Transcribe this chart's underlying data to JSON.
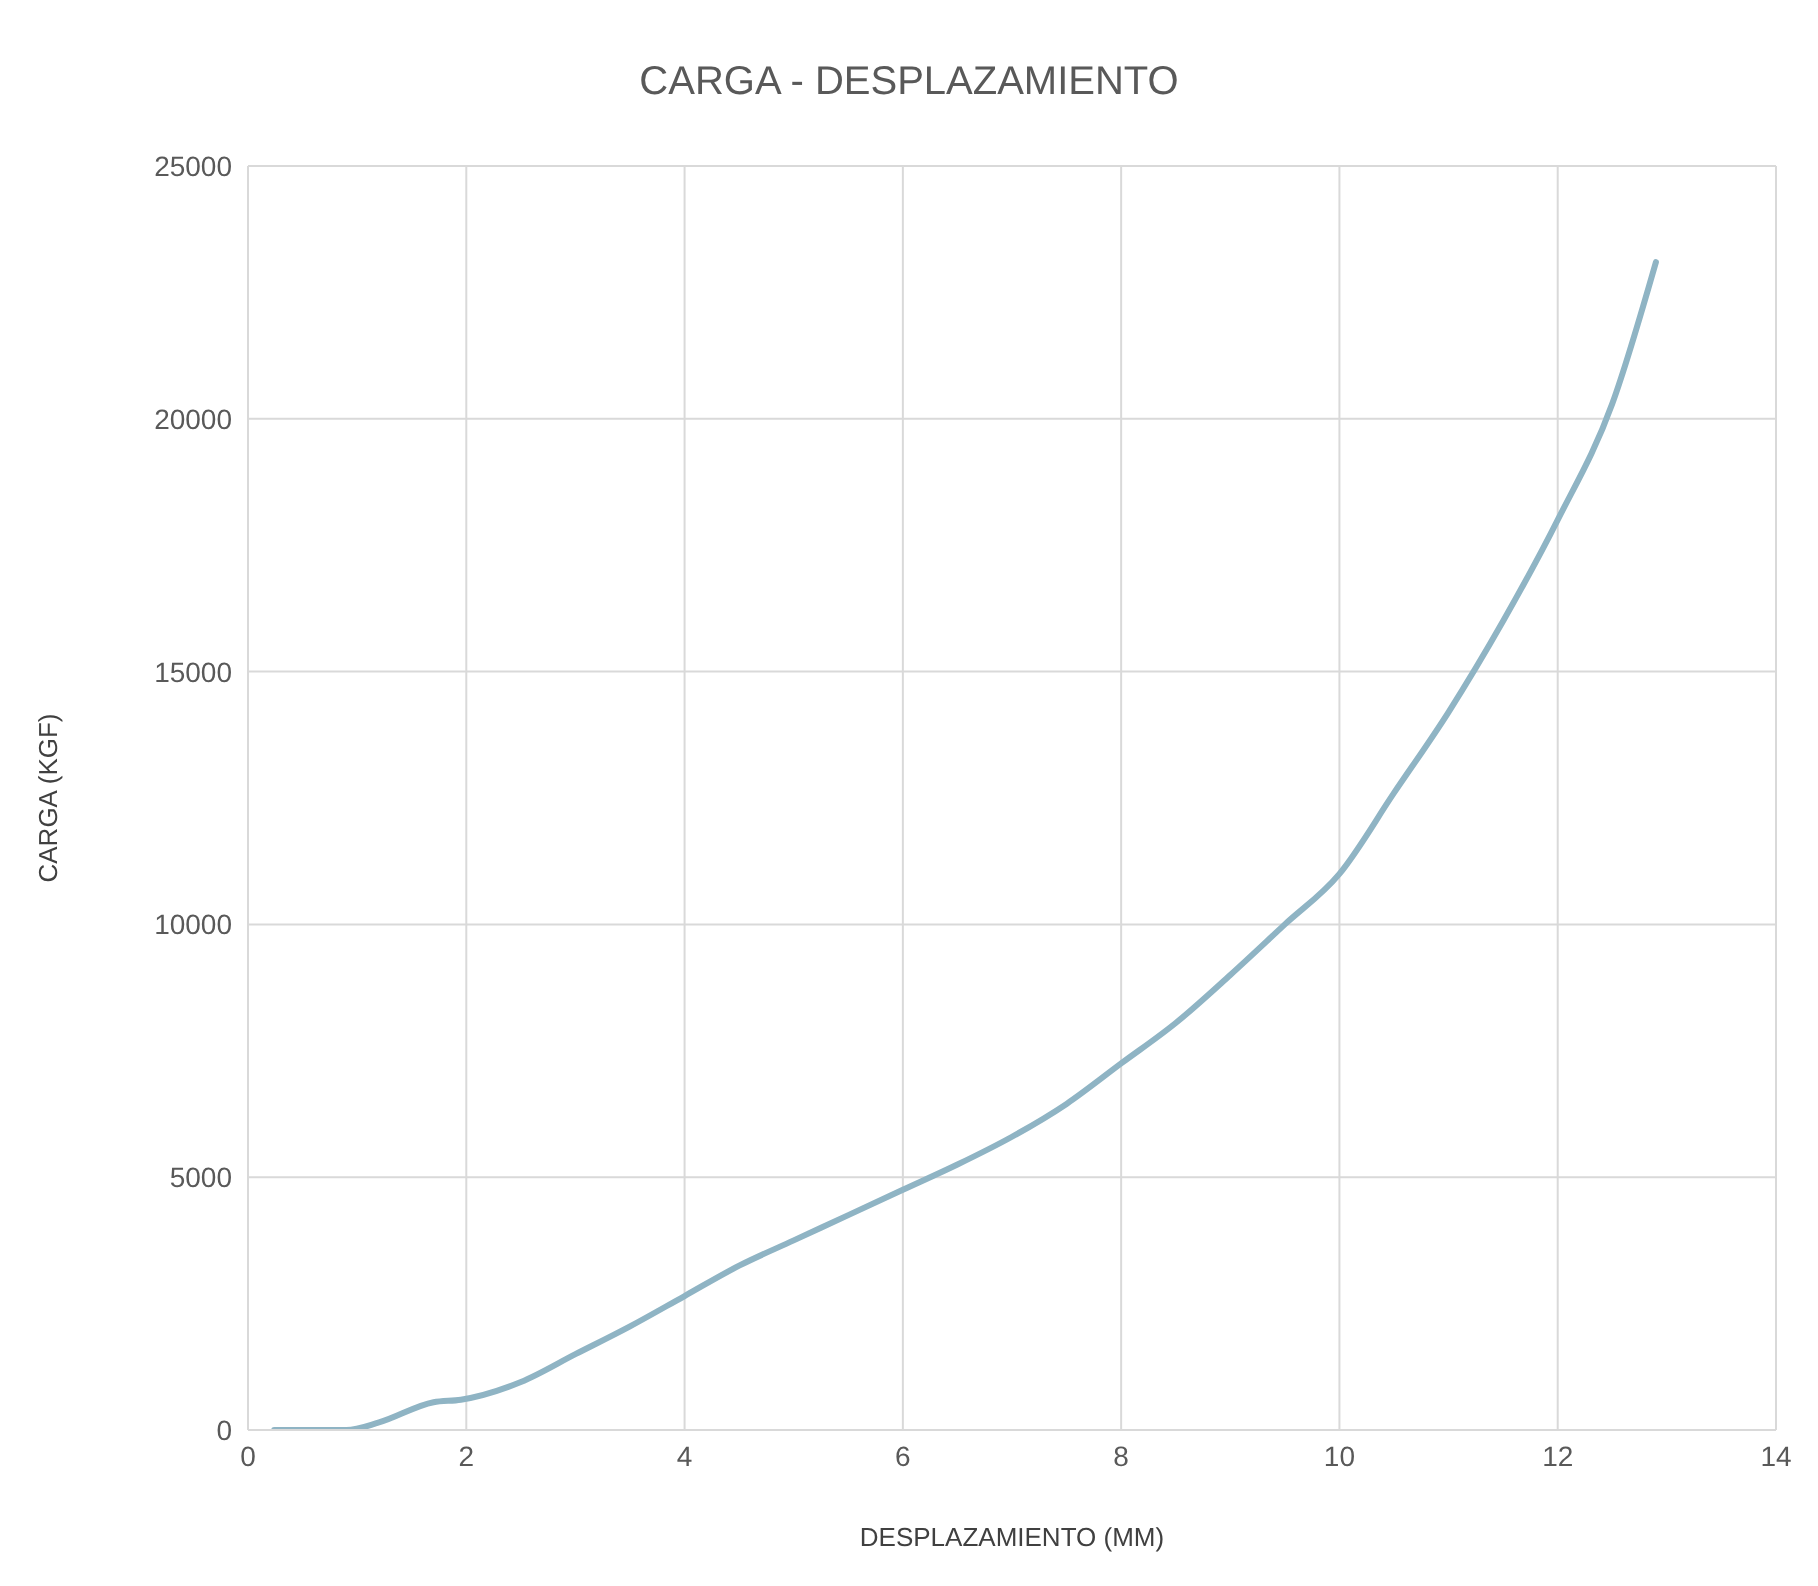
{
  "chart_data": {
    "type": "line",
    "title": "CARGA - DESPLAZAMIENTO",
    "xlabel": "DESPLAZAMIENTO (MM)",
    "ylabel": "CARGA  (KGF)",
    "series": [
      {
        "color": "#8fb4c4",
        "x": [
          0.24,
          0.9,
          1.2,
          1.7,
          1.95,
          2.5,
          3,
          3.5,
          4,
          4.5,
          5,
          5.5,
          6,
          6.5,
          7,
          7.5,
          8,
          8.5,
          9,
          9.5,
          10,
          10.5,
          11,
          11.5,
          12,
          12.5,
          12.9
        ],
        "values": [
          0,
          0,
          150,
          550,
          600,
          950,
          1500,
          2050,
          2650,
          3250,
          3750,
          4250,
          4750,
          5250,
          5800,
          6450,
          7250,
          8050,
          9000,
          10000,
          11000,
          12600,
          14200,
          16000,
          18000,
          20300,
          23100
        ]
      }
    ],
    "xlim": [
      0,
      14
    ],
    "xticks": [
      0,
      2,
      4,
      6,
      8,
      10,
      12,
      14
    ],
    "ylim": [
      0,
      25000
    ],
    "yticks": [
      0,
      5000,
      10000,
      15000,
      20000,
      25000
    ],
    "grid": true,
    "legend": false,
    "marker": "none",
    "line_style": "solid"
  }
}
